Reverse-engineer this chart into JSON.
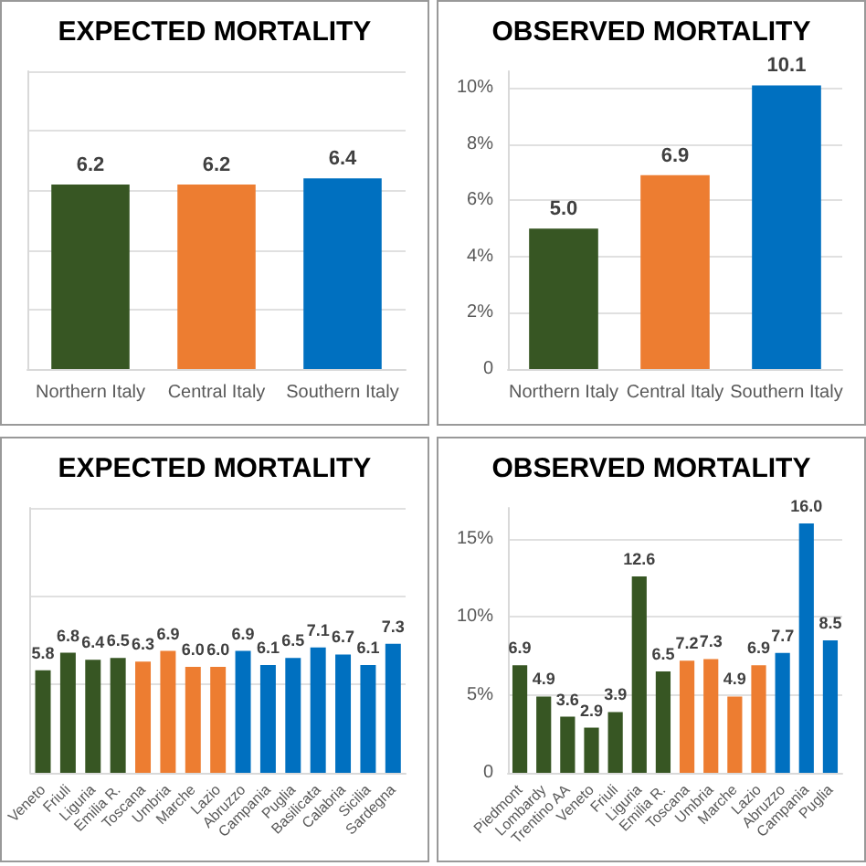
{
  "chart_data": [
    {
      "type": "bar",
      "title": "EXPECTED MORTALITY",
      "categories": [
        "Northern Italy",
        "Central Italy",
        "Southern Italy"
      ],
      "values": [
        6.2,
        6.2,
        6.4
      ],
      "colors": [
        "#375623",
        "#ed7d31",
        "#0070c0"
      ],
      "data_labels": true,
      "ylim": [
        0,
        10
      ],
      "yticks": [
        {
          "value": 0,
          "label": null
        },
        {
          "value": 2,
          "label": null
        },
        {
          "value": 4,
          "label": null
        },
        {
          "value": 6,
          "label": null
        },
        {
          "value": 8,
          "label": null
        },
        {
          "value": 10,
          "label": null
        }
      ],
      "tick_labels": "x",
      "grid": "y"
    },
    {
      "type": "bar",
      "title": "OBSERVED MORTALITY",
      "categories": [
        "Northern Italy",
        "Central Italy",
        "Southern Italy"
      ],
      "values": [
        5.0,
        6.9,
        10.1
      ],
      "colors": [
        "#375623",
        "#ed7d31",
        "#0070c0"
      ],
      "value_labels": [
        "5.0",
        "6.9",
        "10.1"
      ],
      "ylim": [
        0,
        10.6
      ],
      "yticks": [
        0,
        {
          "value": 2,
          "label": "2%"
        },
        {
          "value": 4,
          "label": "4%"
        },
        {
          "value": 6,
          "label": "6%"
        },
        {
          "value": 8,
          "label": "8%"
        },
        {
          "value": 10,
          "label": "10%"
        }
      ],
      "grid": "y"
    },
    {
      "type": "bar",
      "title": "EXPECTED MORTALITY",
      "categories": [
        "Veneto",
        "Friuli",
        "Liguria",
        "Emilia R.",
        "Toscana",
        "Umbria",
        "Marche",
        "Lazio",
        "Abruzzo",
        "Campania",
        "Puglia",
        "Basilicata",
        "Calabria",
        "Sicilia",
        "Sardegna"
      ],
      "values": [
        5.8,
        6.8,
        6.4,
        6.5,
        6.3,
        6.9,
        6.0,
        6.0,
        6.9,
        6.1,
        6.5,
        7.1,
        6.7,
        6.1,
        7.3
      ],
      "colors": [
        "#375623",
        "#375623",
        "#375623",
        "#375623",
        "#ed7d31",
        "#ed7d31",
        "#ed7d31",
        "#ed7d31",
        "#0070c0",
        "#0070c0",
        "#0070c0",
        "#0070c0",
        "#0070c0",
        "#0070c0",
        "#0070c0"
      ],
      "value_labels": [
        "5.8",
        "6.8",
        "6.4",
        "6.5",
        "6.3",
        "6.9",
        "6.0",
        "6.0",
        "6.9",
        "6.1",
        "6.5",
        "7.1",
        "6.7",
        "6.1",
        "7.3"
      ],
      "ylim": [
        0,
        15
      ],
      "yticks": [
        {
          "value": 0,
          "label": null
        },
        {
          "value": 5,
          "label": null
        },
        {
          "value": 10,
          "label": null
        },
        {
          "value": 15,
          "label": null
        }
      ],
      "tick_labels": "x",
      "grid": "y"
    },
    {
      "type": "bar",
      "title": "OBSERVED MORTALITY",
      "categories": [
        "Piedmont",
        "Lombardy",
        "Trentino AA",
        "Veneto",
        "Friuli",
        "Liguria",
        "Emilia R.",
        "Toscana",
        "Umbria",
        "Marche",
        "Lazio",
        "Abruzzo",
        "Campania",
        "Puglia"
      ],
      "values": [
        6.9,
        4.9,
        3.6,
        2.9,
        3.9,
        12.6,
        6.5,
        7.2,
        7.3,
        4.9,
        6.9,
        7.7,
        16.0,
        8.5
      ],
      "colors": [
        "#375623",
        "#375623",
        "#375623",
        "#375623",
        "#375623",
        "#375623",
        "#375623",
        "#ed7d31",
        "#ed7d31",
        "#ed7d31",
        "#ed7d31",
        "#0070c0",
        "#0070c0",
        "#0070c0"
      ],
      "value_labels": [
        "6.9",
        "4.9",
        "3.6",
        "2.9",
        "3.9",
        "12.6",
        "6.5",
        "7.2",
        "7.3",
        "4.9",
        "6.9",
        "7.7",
        "16.0",
        "8.5"
      ],
      "ylim": [
        0,
        17
      ],
      "yticks": [
        0,
        {
          "value": 5,
          "label": "5%"
        },
        {
          "value": 10,
          "label": "10%"
        },
        {
          "value": 15,
          "label": "15%"
        }
      ],
      "grid": "y"
    }
  ]
}
